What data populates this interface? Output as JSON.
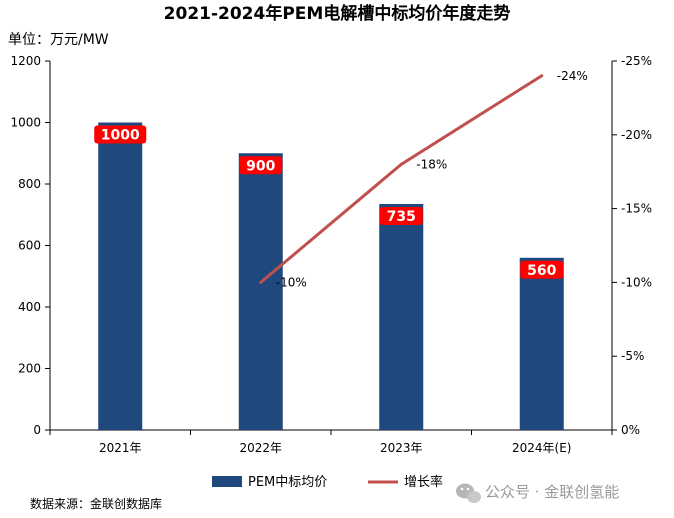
{
  "chart_data": {
    "type": "bar",
    "title": "2021-2024年PEM电解槽中标均价年度走势",
    "unit_label": "单位：万元/MW",
    "categories": [
      "2021年",
      "2022年",
      "2023年",
      "2024年(E)"
    ],
    "series": [
      {
        "name": "PEM中标均价",
        "type": "bar",
        "axis": "left",
        "color": "#1f497d",
        "values": [
          1000,
          900,
          735,
          560
        ],
        "labels": [
          "1000",
          "900",
          "735",
          "560"
        ]
      },
      {
        "name": "增长率",
        "type": "line",
        "axis": "right",
        "color": "#c0504d",
        "values": [
          null,
          -10,
          -18,
          -24
        ],
        "labels": [
          "",
          "-10%",
          "-18%",
          "-24%"
        ]
      }
    ],
    "y_left": {
      "min": 0,
      "max": 1200,
      "step": 200,
      "ticks": [
        "0",
        "200",
        "400",
        "600",
        "800",
        "1000",
        "1200"
      ]
    },
    "y_right": {
      "min": 0,
      "max": -25,
      "step": -5,
      "ticks": [
        "0%",
        "-5%",
        "-10%",
        "-15%",
        "-20%",
        "-25%"
      ]
    },
    "grid": false,
    "legend_position": "bottom",
    "label_box_color": "#ff0000"
  },
  "footer": {
    "source": "数据来源：金联创数据库",
    "brand": "公众号 · 金联创氢能"
  }
}
